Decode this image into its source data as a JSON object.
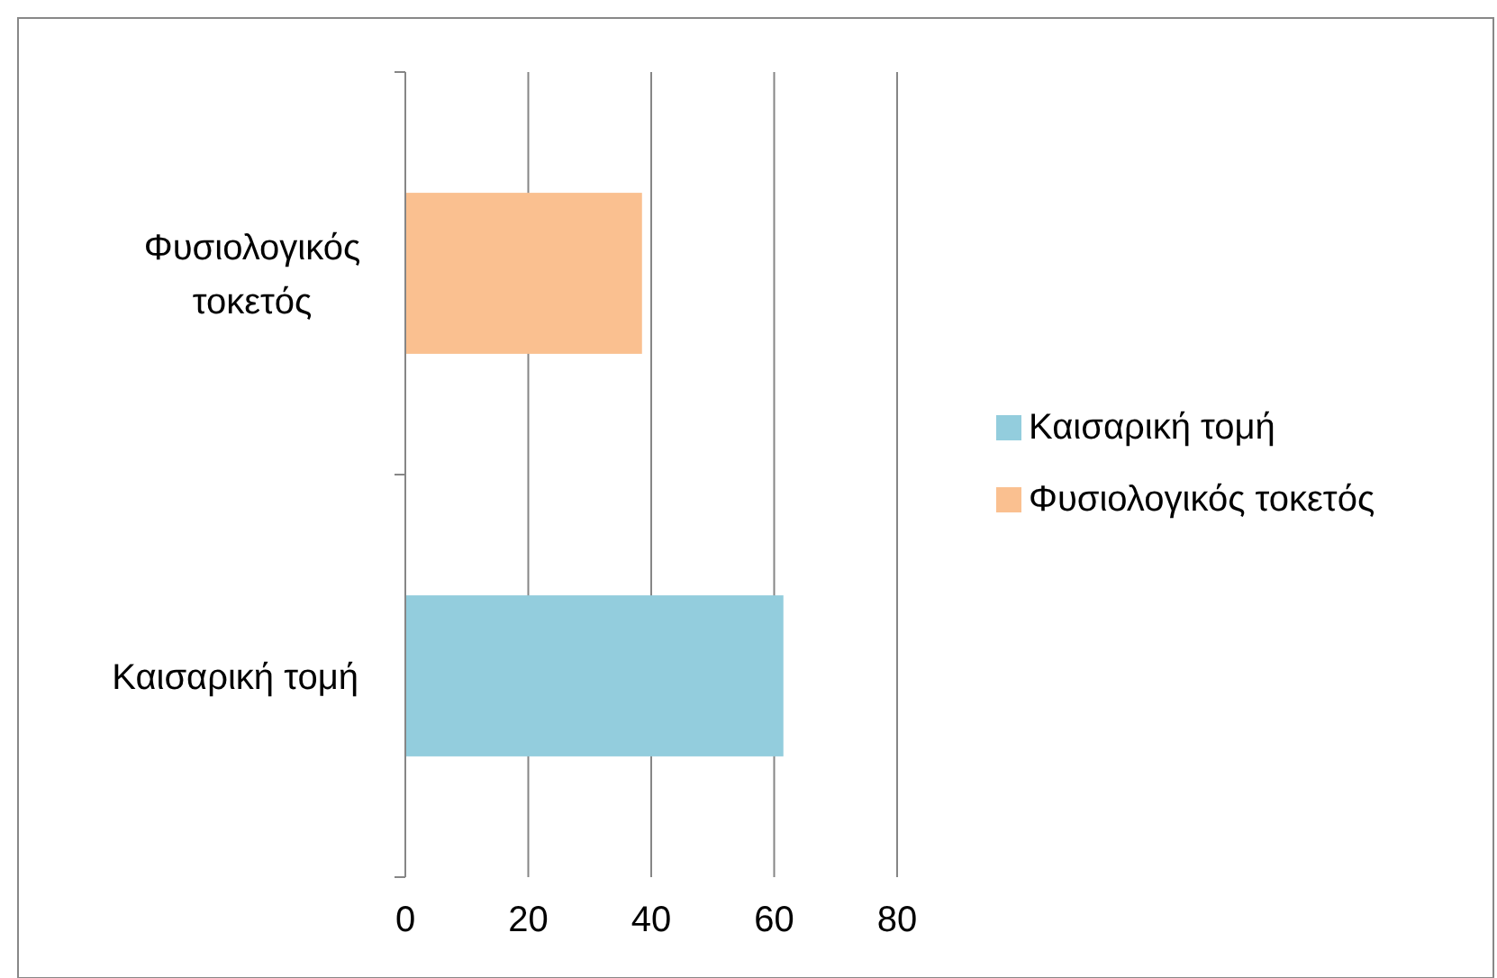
{
  "chart_data": {
    "type": "bar",
    "orientation": "horizontal",
    "stacked": true,
    "categories": [
      "Φυσιολογικός τοκετός",
      "Καισαρική τομή"
    ],
    "series": [
      {
        "name": "Καισαρική τομή",
        "color": "#93cddd",
        "values": [
          null,
          61.5
        ]
      },
      {
        "name": "Φυσιολογικός τοκετός",
        "color": "#fac090",
        "values": [
          38.5,
          null
        ]
      }
    ],
    "xlim": [
      0,
      80
    ],
    "xticks": [
      0,
      20,
      40,
      60,
      80
    ],
    "grid": "x",
    "legend": "right"
  }
}
